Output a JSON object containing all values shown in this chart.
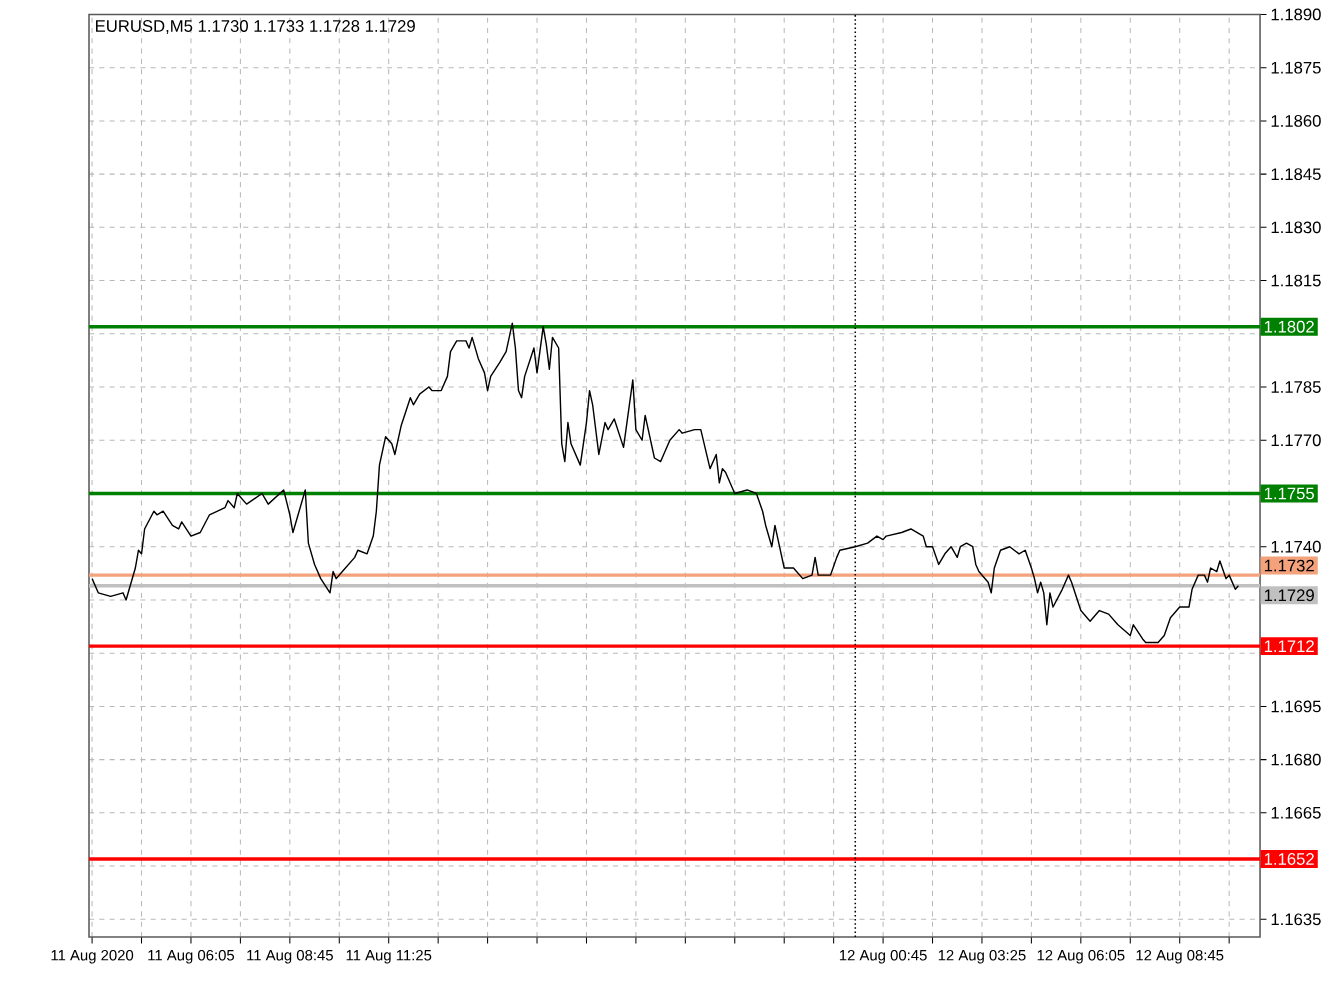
{
  "chart_data": {
    "type": "line",
    "title": "EURUSD,M5  1.1730 1.1733 1.1728 1.1729",
    "x": [
      "2020-08-11T03:25",
      "2020-08-11T03:35",
      "2020-08-11T03:55",
      "2020-08-11T04:15",
      "2020-08-11T04:20",
      "2020-08-11T04:35",
      "2020-08-11T04:40",
      "2020-08-11T04:45",
      "2020-08-11T04:50",
      "2020-08-11T05:05",
      "2020-08-11T05:10",
      "2020-08-11T05:20",
      "2020-08-11T05:35",
      "2020-08-11T05:45",
      "2020-08-11T05:50",
      "2020-08-11T06:05",
      "2020-08-11T06:20",
      "2020-08-11T06:35",
      "2020-08-11T07:00",
      "2020-08-11T07:05",
      "2020-08-11T07:15",
      "2020-08-11T07:20",
      "2020-08-11T07:35",
      "2020-08-11T08:00",
      "2020-08-11T08:10",
      "2020-08-11T08:35",
      "2020-08-11T08:45",
      "2020-08-11T08:50",
      "2020-08-11T09:00",
      "2020-08-11T09:10",
      "2020-08-11T09:15",
      "2020-08-11T09:25",
      "2020-08-11T09:35",
      "2020-08-11T09:50",
      "2020-08-11T09:55",
      "2020-08-11T10:00",
      "2020-08-11T10:10",
      "2020-08-11T10:30",
      "2020-08-11T10:35",
      "2020-08-11T10:50",
      "2020-08-11T11:00",
      "2020-08-11T11:05",
      "2020-08-11T11:10",
      "2020-08-11T11:20",
      "2020-08-11T11:30",
      "2020-08-11T11:35",
      "2020-08-11T11:45",
      "2020-08-11T12:00",
      "2020-08-11T12:05",
      "2020-08-11T12:15",
      "2020-08-11T12:30",
      "2020-08-11T12:35",
      "2020-08-11T12:50",
      "2020-08-11T13:00",
      "2020-08-11T13:05",
      "2020-08-11T13:15",
      "2020-08-11T13:30",
      "2020-08-11T13:35",
      "2020-08-11T13:40",
      "2020-08-11T13:50",
      "2020-08-11T14:00",
      "2020-08-11T14:05",
      "2020-08-11T14:10",
      "2020-08-11T14:25",
      "2020-08-11T14:35",
      "2020-08-11T14:45",
      "2020-08-11T14:50",
      "2020-08-11T14:55",
      "2020-08-11T15:00",
      "2020-08-11T15:05",
      "2020-08-11T15:20",
      "2020-08-11T15:25",
      "2020-08-11T15:35",
      "2020-08-11T15:40",
      "2020-08-11T15:45",
      "2020-08-11T15:50",
      "2020-08-11T16:00",
      "2020-08-11T16:05",
      "2020-08-11T16:10",
      "2020-08-11T16:15",
      "2020-08-11T16:20",
      "2020-08-11T16:35",
      "2020-08-11T16:45",
      "2020-08-11T16:50",
      "2020-08-11T16:55",
      "2020-08-11T17:05",
      "2020-08-11T17:15",
      "2020-08-11T17:20",
      "2020-08-11T17:30",
      "2020-08-11T17:45",
      "2020-08-11T18:00",
      "2020-08-11T18:05",
      "2020-08-11T18:15",
      "2020-08-11T18:20",
      "2020-08-11T18:35",
      "2020-08-11T18:45",
      "2020-08-11T19:00",
      "2020-08-11T19:15",
      "2020-08-11T19:20",
      "2020-08-11T19:40",
      "2020-08-11T19:50",
      "2020-08-11T20:05",
      "2020-08-11T20:15",
      "2020-08-11T20:20",
      "2020-08-11T20:25",
      "2020-08-11T20:30",
      "2020-08-11T20:45",
      "2020-08-11T21:05",
      "2020-08-11T21:20",
      "2020-08-11T21:30",
      "2020-08-11T21:35",
      "2020-08-11T21:45",
      "2020-08-11T21:50",
      "2020-08-11T21:55",
      "2020-08-11T22:05",
      "2020-08-11T22:20",
      "2020-08-11T22:35",
      "2020-08-11T22:50",
      "2020-08-11T22:55",
      "2020-08-11T23:00",
      "2020-08-11T23:05",
      "2020-08-11T23:20",
      "2020-08-11T23:30",
      "2020-08-11T23:35",
      "2020-08-12T00:00",
      "2020-08-12T00:20",
      "2020-08-12T00:35",
      "2020-08-12T00:45",
      "2020-08-12T00:50",
      "2020-08-12T01:15",
      "2020-08-12T01:30",
      "2020-08-12T01:50",
      "2020-08-12T01:55",
      "2020-08-12T02:05",
      "2020-08-12T02:15",
      "2020-08-12T02:25",
      "2020-08-12T02:35",
      "2020-08-12T02:45",
      "2020-08-12T02:50",
      "2020-08-12T03:00",
      "2020-08-12T03:10",
      "2020-08-12T03:15",
      "2020-08-12T03:20",
      "2020-08-12T03:35",
      "2020-08-12T03:40",
      "2020-08-12T03:45",
      "2020-08-12T03:55",
      "2020-08-12T04:10",
      "2020-08-12T04:25",
      "2020-08-12T04:35",
      "2020-08-12T04:45",
      "2020-08-12T04:50",
      "2020-08-12T04:55",
      "2020-08-12T05:00",
      "2020-08-12T05:05",
      "2020-08-12T05:10",
      "2020-08-12T05:15",
      "2020-08-12T05:20",
      "2020-08-12T05:35",
      "2020-08-12T05:45",
      "2020-08-12T05:50",
      "2020-08-12T06:05",
      "2020-08-12T06:20",
      "2020-08-12T06:35",
      "2020-08-12T06:50",
      "2020-08-12T07:05",
      "2020-08-12T07:25",
      "2020-08-12T07:30",
      "2020-08-12T07:45",
      "2020-08-12T07:50",
      "2020-08-12T08:10",
      "2020-08-12T08:20",
      "2020-08-12T08:30",
      "2020-08-12T08:45",
      "2020-08-12T09:00",
      "2020-08-12T09:05",
      "2020-08-12T09:15",
      "2020-08-12T09:25",
      "2020-08-12T09:30",
      "2020-08-12T09:35",
      "2020-08-12T09:45",
      "2020-08-12T09:50",
      "2020-08-12T10:00",
      "2020-08-12T10:05",
      "2020-08-12T10:15",
      "2020-08-12T10:20"
    ],
    "values": [
      1.1731,
      1.1727,
      1.1726,
      1.1727,
      1.1725,
      1.1734,
      1.1739,
      1.1738,
      1.1745,
      1.175,
      1.1749,
      1.175,
      1.1746,
      1.1745,
      1.1747,
      1.1743,
      1.1744,
      1.1749,
      1.1751,
      1.1753,
      1.1751,
      1.1755,
      1.1752,
      1.1755,
      1.1752,
      1.1756,
      1.1749,
      1.1744,
      1.175,
      1.1756,
      1.1741,
      1.1735,
      1.1731,
      1.1727,
      1.1733,
      1.1731,
      1.1733,
      1.1737,
      1.1739,
      1.1738,
      1.1743,
      1.175,
      1.1763,
      1.1771,
      1.1769,
      1.1766,
      1.1774,
      1.1782,
      1.178,
      1.1783,
      1.1785,
      1.1784,
      1.1784,
      1.1788,
      1.1795,
      1.1798,
      1.1798,
      1.1796,
      1.1799,
      1.1793,
      1.1789,
      1.1784,
      1.1788,
      1.1792,
      1.1795,
      1.1803,
      1.1796,
      1.1784,
      1.1782,
      1.1788,
      1.1796,
      1.1789,
      1.1802,
      1.1797,
      1.179,
      1.1799,
      1.1796,
      1.1769,
      1.1764,
      1.1775,
      1.1769,
      1.1763,
      1.1775,
      1.1784,
      1.178,
      1.1766,
      1.1775,
      1.1773,
      1.1776,
      1.1768,
      1.1787,
      1.1773,
      1.177,
      1.1777,
      1.1765,
      1.1764,
      1.177,
      1.1773,
      1.1772,
      1.1773,
      1.1773,
      1.1762,
      1.1766,
      1.1758,
      1.1762,
      1.1761,
      1.1755,
      1.1756,
      1.1755,
      1.175,
      1.1746,
      1.174,
      1.1746,
      1.1742,
      1.1734,
      1.1734,
      1.1731,
      1.1732,
      1.1737,
      1.1732,
      1.1732,
      1.1732,
      1.1737,
      1.1739,
      1.174,
      1.1741,
      1.1743,
      1.1742,
      1.1743,
      1.1744,
      1.1745,
      1.1743,
      1.174,
      1.174,
      1.1735,
      1.1738,
      1.174,
      1.1737,
      1.174,
      1.1741,
      1.174,
      1.1735,
      1.1733,
      1.173,
      1.1727,
      1.1734,
      1.1739,
      1.174,
      1.1738,
      1.1739,
      1.1734,
      1.1731,
      1.1727,
      1.173,
      1.1727,
      1.1718,
      1.1727,
      1.1723,
      1.1728,
      1.1732,
      1.173,
      1.1722,
      1.1719,
      1.1722,
      1.1721,
      1.1718,
      1.1715,
      1.1718,
      1.1714,
      1.1713,
      1.1713,
      1.1715,
      1.172,
      1.1723,
      1.1723,
      1.1728,
      1.1732,
      1.1732,
      1.173,
      1.1734,
      1.1733,
      1.1736,
      1.1731,
      1.1732,
      1.1728,
      1.1729
    ],
    "color": "#000000",
    "xlim": [
      "2020-08-11T03:20",
      "2020-08-12T10:55"
    ],
    "ylim": [
      1.163,
      1.189
    ],
    "xticks": [
      {
        "value": "2020-08-11T03:25",
        "label": "11 Aug 2020"
      },
      {
        "value": "2020-08-11T04:45",
        "label": null
      },
      {
        "value": "2020-08-11T06:05",
        "label": "11 Aug 06:05"
      },
      {
        "value": "2020-08-11T07:25",
        "label": null
      },
      {
        "value": "2020-08-11T08:45",
        "label": "11 Aug 08:45"
      },
      {
        "value": "2020-08-11T10:05",
        "label": null
      },
      {
        "value": "2020-08-11T11:25",
        "label": "11 Aug 11:25"
      },
      {
        "value": "2020-08-11T12:45",
        "label": null
      },
      {
        "value": "2020-08-11T14:05",
        "label": null
      },
      {
        "value": "2020-08-11T15:25",
        "label": null
      },
      {
        "value": "2020-08-11T16:45",
        "label": null
      },
      {
        "value": "2020-08-11T18:05",
        "label": null
      },
      {
        "value": "2020-08-11T19:25",
        "label": null
      },
      {
        "value": "2020-08-11T20:45",
        "label": null
      },
      {
        "value": "2020-08-11T22:05",
        "label": null
      },
      {
        "value": "2020-08-11T23:25",
        "label": null
      },
      {
        "value": "2020-08-12T00:45",
        "label": "12 Aug 00:45"
      },
      {
        "value": "2020-08-12T02:05",
        "label": null
      },
      {
        "value": "2020-08-12T03:25",
        "label": "12 Aug 03:25"
      },
      {
        "value": "2020-08-12T04:45",
        "label": null
      },
      {
        "value": "2020-08-12T06:05",
        "label": "12 Aug 06:05"
      },
      {
        "value": "2020-08-12T07:25",
        "label": null
      },
      {
        "value": "2020-08-12T08:45",
        "label": "12 Aug 08:45"
      },
      {
        "value": "2020-08-12T10:05",
        "label": null
      }
    ],
    "yticks": [
      {
        "value": 1.189,
        "label": "1.1890"
      },
      {
        "value": 1.1875,
        "label": "1.1875"
      },
      {
        "value": 1.186,
        "label": "1.1860"
      },
      {
        "value": 1.1845,
        "label": "1.1845"
      },
      {
        "value": 1.183,
        "label": "1.1830"
      },
      {
        "value": 1.1815,
        "label": "1.1815"
      },
      {
        "value": 1.18,
        "label": null
      },
      {
        "value": 1.1785,
        "label": "1.1785"
      },
      {
        "value": 1.177,
        "label": "1.1770"
      },
      {
        "value": 1.1755,
        "label": null
      },
      {
        "value": 1.174,
        "label": "1.1740"
      },
      {
        "value": 1.1725,
        "label": null
      },
      {
        "value": 1.171,
        "label": null
      },
      {
        "value": 1.1695,
        "label": "1.1695"
      },
      {
        "value": 1.168,
        "label": "1.1680"
      },
      {
        "value": 1.1665,
        "label": "1.1665"
      },
      {
        "value": 1.165,
        "label": null
      },
      {
        "value": 1.1635,
        "label": "1.1635"
      }
    ],
    "ref_lines": [
      {
        "axis": "y",
        "value": 1.1802,
        "label": "1.1802",
        "color": "#008000"
      },
      {
        "axis": "y",
        "value": 1.1755,
        "label": "1.1755",
        "color": "#008000"
      },
      {
        "axis": "y",
        "value": 1.1732,
        "label": "1.1732",
        "color": "#f4a27c"
      },
      {
        "axis": "y",
        "value": 1.1729,
        "label": "1.1729",
        "color": "#c0c0c0"
      },
      {
        "axis": "y",
        "value": 1.1712,
        "label": "1.1712",
        "color": "#ff0000"
      },
      {
        "axis": "y",
        "value": 1.1652,
        "label": "1.1652",
        "color": "#ff0000"
      },
      {
        "axis": "x",
        "value": "2020-08-12T00:00",
        "color": "#000000",
        "line_style": "dotted"
      }
    ],
    "grid": true
  }
}
